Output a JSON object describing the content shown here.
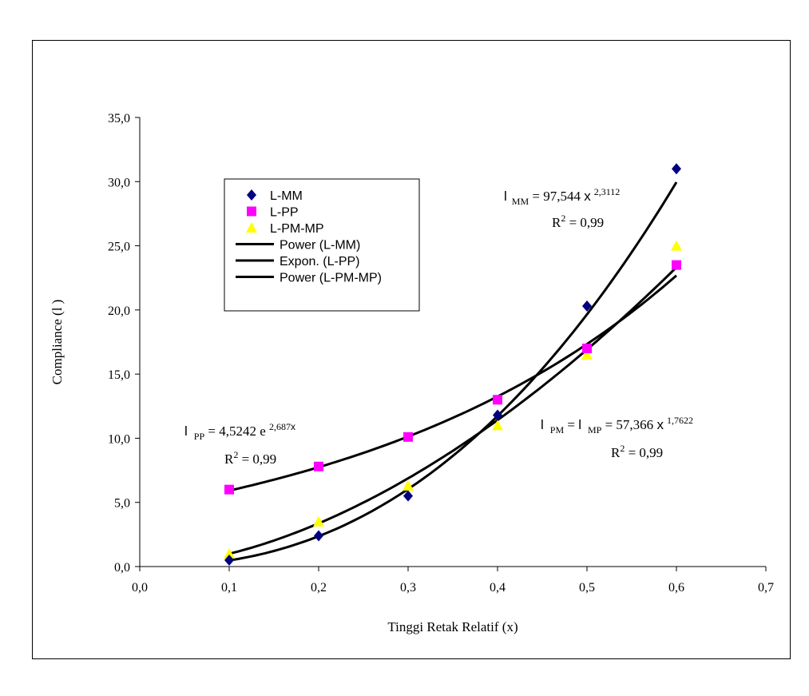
{
  "chart_data": {
    "type": "scatter",
    "xlabel": "Tinggi Retak Relatif (x)",
    "ylabel": "Compliance (l )",
    "xlim": [
      0.0,
      0.7
    ],
    "ylim": [
      0.0,
      35.0
    ],
    "x_ticks": [
      "0,0",
      "0,1",
      "0,2",
      "0,3",
      "0,4",
      "0,5",
      "0,6",
      "0,7"
    ],
    "y_ticks": [
      "0,0",
      "5,0",
      "10,0",
      "15,0",
      "20,0",
      "25,0",
      "30,0",
      "35,0"
    ],
    "grid": false,
    "legend_position": "upper-left",
    "series": [
      {
        "name": "L-MM",
        "marker": "diamond",
        "color": "#000080",
        "x": [
          0.1,
          0.2,
          0.3,
          0.4,
          0.5,
          0.6
        ],
        "y": [
          0.5,
          2.4,
          5.5,
          11.8,
          20.3,
          31.0
        ]
      },
      {
        "name": "L-PP",
        "marker": "square",
        "color": "#ff00ff",
        "x": [
          0.1,
          0.2,
          0.3,
          0.4,
          0.5,
          0.6
        ],
        "y": [
          6.0,
          7.8,
          10.1,
          13.0,
          17.0,
          23.5
        ]
      },
      {
        "name": "L-PM-MP",
        "marker": "triangle",
        "color": "#ffff00",
        "x": [
          0.1,
          0.2,
          0.3,
          0.4,
          0.5,
          0.6
        ],
        "y": [
          1.0,
          3.5,
          6.3,
          11.0,
          16.5,
          25.0
        ]
      }
    ],
    "trendlines": [
      {
        "name": "Power (L-MM)",
        "kind": "power",
        "a": 97.544,
        "b": 2.3112,
        "color": "#000000"
      },
      {
        "name": "Expon. (L-PP)",
        "kind": "exp",
        "a": 4.5242,
        "b": 2.687,
        "color": "#000000"
      },
      {
        "name": "Power (L-PM-MP)",
        "kind": "power",
        "a": 57.366,
        "b": 1.7622,
        "color": "#000000"
      }
    ],
    "annotations": {
      "mm": {
        "sym": "l",
        "sub": "MM",
        "eq": " = 97,544 ",
        "x": "x",
        "sup": "2,3112",
        "r2_pre": "R",
        "r2_sup": "2",
        "r2_val": " = 0,99"
      },
      "pp": {
        "sym": "l",
        "sub": "PP",
        "eq": " = 4,5242 e ",
        "sup": "2,687",
        "x": "x",
        "r2_pre": "R",
        "r2_sup": "2",
        "r2_val": " = 0,99"
      },
      "pm": {
        "sym1": "l",
        "sub1": "PM",
        "mid": " = ",
        "sym2": "l",
        "sub2": "MP",
        "eq": " = 57,366 ",
        "x": "x",
        "sup": "1,7622",
        "r2_pre": "R",
        "r2_sup": "2",
        "r2_val": " = 0,99"
      }
    }
  }
}
